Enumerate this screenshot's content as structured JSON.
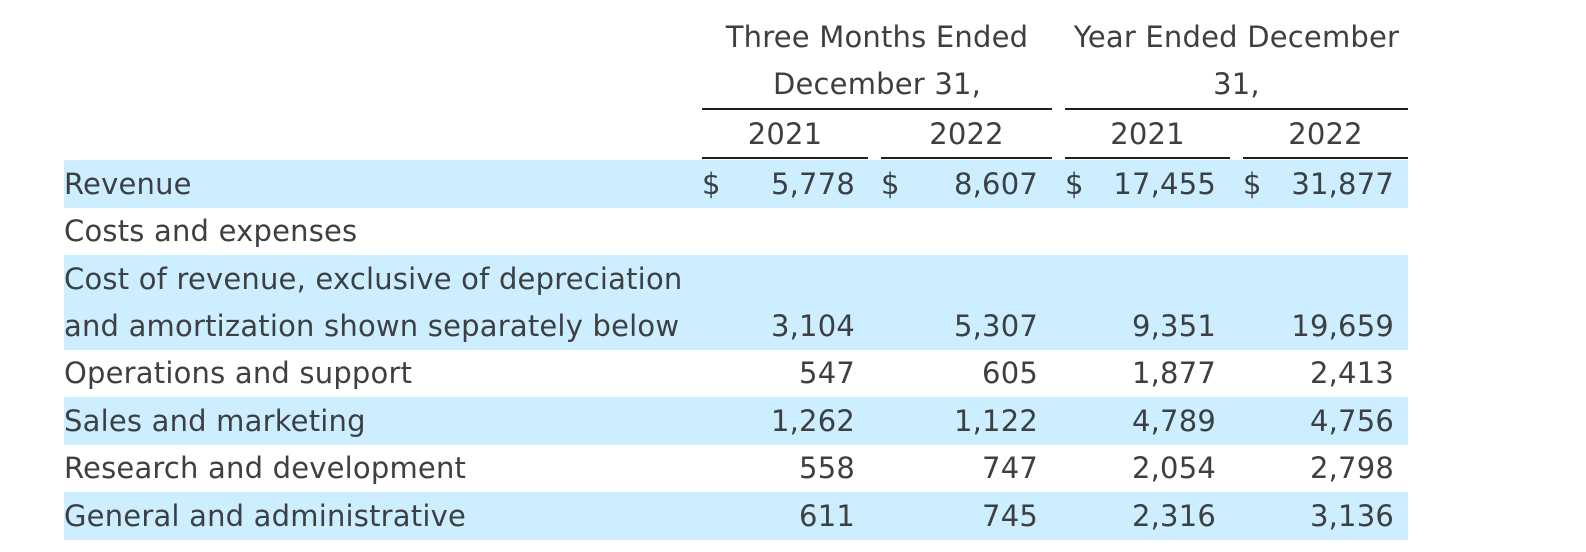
{
  "header": {
    "group1": [
      "Three Months Ended",
      "December 31,"
    ],
    "group2": [
      "Year Ended December",
      "31,"
    ],
    "years": [
      "2021",
      "2022",
      "2021",
      "2022"
    ]
  },
  "currency_symbol": "$",
  "rows": [
    {
      "label": [
        "Revenue"
      ],
      "values": [
        "5,778",
        "8,607",
        "17,455",
        "31,877"
      ],
      "highlight": true,
      "currency": true
    },
    {
      "label": [
        "Costs and expenses"
      ],
      "values": [],
      "highlight": false,
      "currency": false
    },
    {
      "label": [
        "Cost of revenue, exclusive of depreciation",
        "and amortization shown separately below"
      ],
      "values": [
        "3,104",
        "5,307",
        "9,351",
        "19,659"
      ],
      "highlight": true,
      "currency": false
    },
    {
      "label": [
        "Operations and support"
      ],
      "values": [
        "547",
        "605",
        "1,877",
        "2,413"
      ],
      "highlight": false,
      "currency": false
    },
    {
      "label": [
        "Sales and marketing"
      ],
      "values": [
        "1,262",
        "1,122",
        "4,789",
        "4,756"
      ],
      "highlight": true,
      "currency": false
    },
    {
      "label": [
        "Research and development"
      ],
      "values": [
        "558",
        "747",
        "2,054",
        "2,798"
      ],
      "highlight": false,
      "currency": false
    },
    {
      "label": [
        "General and administrative"
      ],
      "values": [
        "611",
        "745",
        "2,316",
        "3,136"
      ],
      "highlight": true,
      "currency": false
    }
  ]
}
